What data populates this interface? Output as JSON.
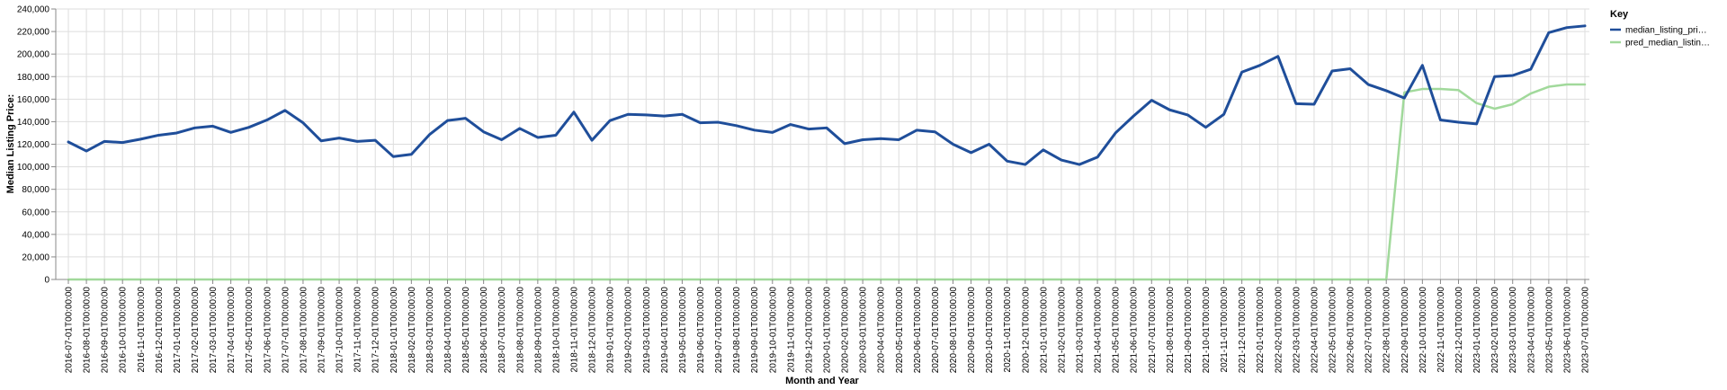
{
  "chart_data": {
    "type": "line",
    "xlabel": "Month and Year",
    "ylabel": "Median Listing Price:",
    "ylim": [
      0,
      240000
    ],
    "y_ticks": [
      "0",
      "20,000",
      "40,000",
      "60,000",
      "80,000",
      "100,000",
      "120,000",
      "140,000",
      "160,000",
      "180,000",
      "200,000",
      "220,000",
      "240,000"
    ],
    "grid": true,
    "legend": {
      "title": "Key",
      "placement": "top-right"
    },
    "x": [
      "2016-07-01T00:00:00",
      "2016-08-01T00:00:00",
      "2016-09-01T00:00:00",
      "2016-10-01T00:00:00",
      "2016-11-01T00:00:00",
      "2016-12-01T00:00:00",
      "2017-01-01T00:00:00",
      "2017-02-01T00:00:00",
      "2017-03-01T00:00:00",
      "2017-04-01T00:00:00",
      "2017-05-01T00:00:00",
      "2017-06-01T00:00:00",
      "2017-07-01T00:00:00",
      "2017-08-01T00:00:00",
      "2017-09-01T00:00:00",
      "2017-10-01T00:00:00",
      "2017-11-01T00:00:00",
      "2017-12-01T00:00:00",
      "2018-01-01T00:00:00",
      "2018-02-01T00:00:00",
      "2018-03-01T00:00:00",
      "2018-04-01T00:00:00",
      "2018-05-01T00:00:00",
      "2018-06-01T00:00:00",
      "2018-07-01T00:00:00",
      "2018-08-01T00:00:00",
      "2018-09-01T00:00:00",
      "2018-10-01T00:00:00",
      "2018-11-01T00:00:00",
      "2018-12-01T00:00:00",
      "2019-01-01T00:00:00",
      "2019-02-01T00:00:00",
      "2019-03-01T00:00:00",
      "2019-04-01T00:00:00",
      "2019-05-01T00:00:00",
      "2019-06-01T00:00:00",
      "2019-07-01T00:00:00",
      "2019-08-01T00:00:00",
      "2019-09-01T00:00:00",
      "2019-10-01T00:00:00",
      "2019-11-01T00:00:00",
      "2019-12-01T00:00:00",
      "2020-01-01T00:00:00",
      "2020-02-01T00:00:00",
      "2020-03-01T00:00:00",
      "2020-04-01T00:00:00",
      "2020-05-01T00:00:00",
      "2020-06-01T00:00:00",
      "2020-07-01T00:00:00",
      "2020-08-01T00:00:00",
      "2020-09-01T00:00:00",
      "2020-10-01T00:00:00",
      "2020-11-01T00:00:00",
      "2020-12-01T00:00:00",
      "2021-01-01T00:00:00",
      "2021-02-01T00:00:00",
      "2021-03-01T00:00:00",
      "2021-04-01T00:00:00",
      "2021-05-01T00:00:00",
      "2021-06-01T00:00:00",
      "2021-07-01T00:00:00",
      "2021-08-01T00:00:00",
      "2021-09-01T00:00:00",
      "2021-10-01T00:00:00",
      "2021-11-01T00:00:00",
      "2021-12-01T00:00:00",
      "2022-01-01T00:00:00",
      "2022-02-01T00:00:00",
      "2022-03-01T00:00:00",
      "2022-04-01T00:00:00",
      "2022-05-01T00:00:00",
      "2022-06-01T00:00:00",
      "2022-07-01T00:00:00",
      "2022-08-01T00:00:00",
      "2022-09-01T00:00:00",
      "2022-10-01T00:00:00",
      "2022-11-01T00:00:00",
      "2022-12-01T00:00:00",
      "2023-01-01T00:00:00",
      "2023-02-01T00:00:00",
      "2023-03-01T00:00:00",
      "2023-04-01T00:00:00",
      "2023-05-01T00:00:00",
      "2023-06-01T00:00:00",
      "2023-07-01T00:00:00"
    ],
    "series": [
      {
        "name": "median_listing_pri…",
        "color": "#1f4e9a",
        "values": [
          122000,
          114000,
          122500,
          121500,
          124500,
          128000,
          130000,
          134500,
          136000,
          130500,
          135000,
          141500,
          150000,
          139000,
          123000,
          125500,
          122500,
          123500,
          109000,
          111000,
          128500,
          141000,
          143000,
          131000,
          124000,
          134000,
          126000,
          128000,
          148500,
          123500,
          141000,
          146500,
          146000,
          145000,
          146500,
          139000,
          139500,
          136500,
          132500,
          130500,
          137500,
          133500,
          134500,
          120500,
          124000,
          125000,
          124000,
          132500,
          131000,
          120000,
          112500,
          120000,
          105000,
          102000,
          115000,
          106000,
          102000,
          108500,
          130000,
          145000,
          159000,
          150500,
          146000,
          135000,
          146500,
          184000,
          190000,
          198000,
          156000,
          155500,
          185000,
          187000,
          173000,
          167500,
          161000,
          190000,
          141500,
          139500,
          138000,
          180000,
          181000,
          186500,
          219000,
          223500,
          225000
        ]
      },
      {
        "name": "pred_median_listin…",
        "color": "#a1d99b",
        "values": [
          0,
          0,
          0,
          0,
          0,
          0,
          0,
          0,
          0,
          0,
          0,
          0,
          0,
          0,
          0,
          0,
          0,
          0,
          0,
          0,
          0,
          0,
          0,
          0,
          0,
          0,
          0,
          0,
          0,
          0,
          0,
          0,
          0,
          0,
          0,
          0,
          0,
          0,
          0,
          0,
          0,
          0,
          0,
          0,
          0,
          0,
          0,
          0,
          0,
          0,
          0,
          0,
          0,
          0,
          0,
          0,
          0,
          0,
          0,
          0,
          0,
          0,
          0,
          0,
          0,
          0,
          0,
          0,
          0,
          0,
          0,
          0,
          0,
          0,
          166000,
          169000,
          169000,
          168000,
          156500,
          151500,
          155500,
          165000,
          171000,
          173000,
          173000
        ]
      }
    ]
  }
}
